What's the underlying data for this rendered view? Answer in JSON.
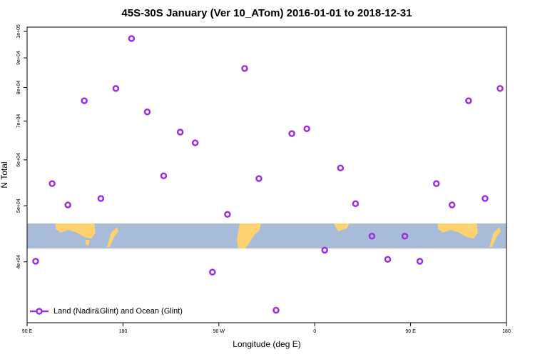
{
  "chart_data": {
    "type": "scatter",
    "title": "45S-30S January (Ver 10_ATom)   2016-01-01 to 2018-12-31",
    "x_label": "Longitude (deg E)",
    "y_label": "N Total",
    "log_y": true,
    "xlim": [
      90,
      540
    ],
    "ylim": [
      31400,
      101700
    ],
    "xticks": [
      {
        "value": 90,
        "label": "90 E"
      },
      {
        "value": 180,
        "label": "180"
      },
      {
        "value": 270,
        "label": "90 W"
      },
      {
        "value": 360,
        "label": "0"
      },
      {
        "value": 450,
        "label": "90 E"
      },
      {
        "value": 540,
        "label": "180"
      }
    ],
    "yticks": [
      {
        "value": 40000,
        "label": "4e+04"
      },
      {
        "value": 50000,
        "label": "5e+04"
      },
      {
        "value": 60000,
        "label": "6e+04"
      },
      {
        "value": 70000,
        "label": "7e+04"
      },
      {
        "value": 80000,
        "label": "8e+04"
      },
      {
        "value": 90000,
        "label": "9e+04"
      },
      {
        "value": 100000,
        "label": "1e+05"
      }
    ],
    "legend_position": "bottom-left",
    "series": [
      {
        "name": "Land (Nadir&Glint) and Ocean (Glint)",
        "color": "#9b30e0",
        "x": [
          98,
          113.5,
          128.3,
          143.7,
          159.2,
          173.3,
          188,
          202.8,
          218.2,
          233.7,
          247.8,
          264,
          278.1,
          294.2,
          307.6,
          323.7,
          338.5,
          352.6,
          369.4,
          384.2,
          398.3,
          413.7,
          428.5,
          444.6,
          458.7,
          474.2,
          488.9,
          504.4,
          519.9,
          534
        ],
        "values": [
          40100,
          54600,
          50150,
          75900,
          51450,
          79700,
          97200,
          72600,
          56300,
          67000,
          64200,
          38400,
          48300,
          86300,
          55700,
          33000,
          66600,
          67900,
          41900,
          58100,
          50400,
          44300,
          40400,
          44300,
          40100,
          54600,
          50150,
          75900,
          51450,
          79700
        ]
      }
    ]
  }
}
